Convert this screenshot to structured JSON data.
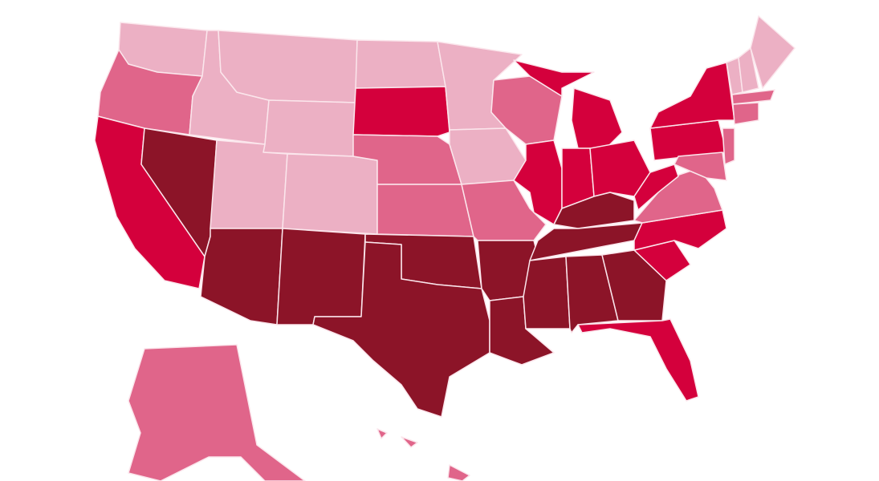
{
  "map": {
    "palette": [
      "#ecb0c4",
      "#e0658a",
      "#d4003c",
      "#8c1428"
    ]
  }
}
